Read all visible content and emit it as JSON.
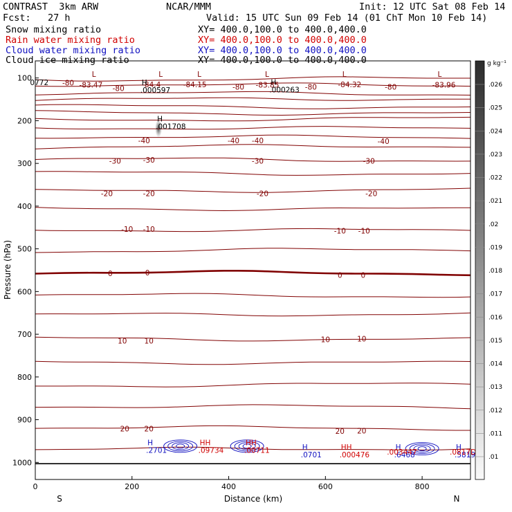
{
  "header": {
    "model": "CONTRAST  3km ARW",
    "center": "NCAR/MMM",
    "init": "Init: 12 UTC Sat 08 Feb 14",
    "fcst": "Fcst:   27 h",
    "valid": "Valid: 15 UTC Sun 09 Feb 14 (01 ChT Mon 10 Feb 14)",
    "fields": [
      {
        "label": "Snow mixing ratio",
        "xy": "XY= 400.0,100.0 to 400.0,400.0",
        "color": "#000000"
      },
      {
        "label": "Rain water mixing ratio",
        "xy": "XY= 400.0,100.0 to 400.0,400.0",
        "color": "#d00000"
      },
      {
        "label": "Cloud water mixing ratio",
        "xy": "XY= 400.0,100.0 to 400.0,400.0",
        "color": "#1010c0"
      },
      {
        "label": "Cloud ice mixing ratio",
        "xy": "XY= 400.0,100.0 to 400.0,400.0",
        "color": "#000000"
      }
    ]
  },
  "chart_data": {
    "type": "contour",
    "xlabel": "Distance (km)",
    "ylabel": "Pressure (hPa)",
    "xlim": [
      0,
      900
    ],
    "ylim": [
      1040,
      60
    ],
    "x_ticks": [
      0,
      200,
      400,
      600,
      800
    ],
    "y_ticks": [
      100,
      200,
      300,
      400,
      500,
      600,
      700,
      800,
      900,
      1000
    ],
    "x_end_labels": {
      "left": "S",
      "right": "N"
    },
    "colorbar": {
      "unit": "g kg⁻¹",
      "ticks": [
        ".01",
        ".011",
        ".012",
        ".013",
        ".014",
        ".015",
        ".016",
        ".017",
        ".018",
        ".019",
        ".02",
        ".021",
        ".022",
        ".023",
        ".024",
        ".025",
        ".026"
      ]
    },
    "temperature_contours": [
      {
        "p": 104,
        "label": null
      },
      {
        "p": 115,
        "label": "-80"
      },
      {
        "p": 135,
        "label": null
      },
      {
        "p": 151,
        "label": null
      },
      {
        "p": 166,
        "label": null
      },
      {
        "p": 181,
        "label": null
      },
      {
        "p": 198,
        "label": null
      },
      {
        "p": 216,
        "label": null
      },
      {
        "p": 237,
        "label": "-40"
      },
      {
        "p": 262,
        "label": null
      },
      {
        "p": 290,
        "label": "-30"
      },
      {
        "p": 322,
        "label": null
      },
      {
        "p": 365,
        "label": "-20"
      },
      {
        "p": 405,
        "label": null
      },
      {
        "p": 455,
        "label": "-10"
      },
      {
        "p": 505,
        "label": null
      },
      {
        "p": 555,
        "label": "0",
        "bold": true
      },
      {
        "p": 608,
        "label": null
      },
      {
        "p": 655,
        "label": null
      },
      {
        "p": 710,
        "label": "10"
      },
      {
        "p": 765,
        "label": null
      },
      {
        "p": 820,
        "label": null
      },
      {
        "p": 868,
        "label": null
      },
      {
        "p": 918,
        "label": "20"
      },
      {
        "p": 970,
        "label": null
      }
    ],
    "contour_labels": [
      {
        "text": "-80",
        "x": 68,
        "p": 111
      },
      {
        "text": "-83.47",
        "x": 115,
        "p": 116
      },
      {
        "text": "-80",
        "x": 172,
        "p": 124
      },
      {
        "text": "-84.4",
        "x": 240,
        "p": 115
      },
      {
        "text": "-84.15",
        "x": 330,
        "p": 115
      },
      {
        "text": "-80",
        "x": 420,
        "p": 121
      },
      {
        "text": "-83.85",
        "x": 480,
        "p": 116
      },
      {
        "text": "-80",
        "x": 570,
        "p": 121
      },
      {
        "text": "-84.32",
        "x": 650,
        "p": 115
      },
      {
        "text": "-80",
        "x": 735,
        "p": 121
      },
      {
        "text": "-83.96",
        "x": 845,
        "p": 116
      },
      {
        "text": "-40",
        "x": 225,
        "p": 246
      },
      {
        "text": "-40",
        "x": 410,
        "p": 246
      },
      {
        "text": "-40",
        "x": 460,
        "p": 246
      },
      {
        "text": "-40",
        "x": 720,
        "p": 248
      },
      {
        "text": "-30",
        "x": 165,
        "p": 294
      },
      {
        "text": "-30",
        "x": 235,
        "p": 292
      },
      {
        "text": "-30",
        "x": 460,
        "p": 294
      },
      {
        "text": "-30",
        "x": 690,
        "p": 294
      },
      {
        "text": "-20",
        "x": 148,
        "p": 370
      },
      {
        "text": "-20",
        "x": 235,
        "p": 370
      },
      {
        "text": "-20",
        "x": 470,
        "p": 370
      },
      {
        "text": "-20",
        "x": 695,
        "p": 370
      },
      {
        "text": "-10",
        "x": 190,
        "p": 454
      },
      {
        "text": "-10",
        "x": 235,
        "p": 454
      },
      {
        "text": "-10",
        "x": 630,
        "p": 458
      },
      {
        "text": "-10",
        "x": 680,
        "p": 458
      },
      {
        "text": "0",
        "x": 155,
        "p": 557
      },
      {
        "text": "0",
        "x": 232,
        "p": 556
      },
      {
        "text": "0",
        "x": 630,
        "p": 561
      },
      {
        "text": "0",
        "x": 678,
        "p": 561
      },
      {
        "text": "10",
        "x": 180,
        "p": 715
      },
      {
        "text": "10",
        "x": 235,
        "p": 715
      },
      {
        "text": "10",
        "x": 600,
        "p": 712
      },
      {
        "text": "10",
        "x": 675,
        "p": 710
      },
      {
        "text": "20",
        "x": 185,
        "p": 921
      },
      {
        "text": "20",
        "x": 235,
        "p": 921
      },
      {
        "text": "20",
        "x": 630,
        "p": 927
      },
      {
        "text": "20",
        "x": 675,
        "p": 926
      }
    ],
    "extrema": [
      {
        "sym": "L",
        "x": 117,
        "p": 97,
        "value": null,
        "color": "#800000"
      },
      {
        "sym": "L",
        "x": 255,
        "p": 97,
        "value": null,
        "color": "#800000"
      },
      {
        "sym": "L",
        "x": 335,
        "p": 97,
        "value": null,
        "color": "#800000"
      },
      {
        "sym": "L",
        "x": 475,
        "p": 97,
        "value": null,
        "color": "#800000"
      },
      {
        "sym": "L",
        "x": 635,
        "p": 97,
        "value": null,
        "color": "#800000"
      },
      {
        "sym": "L",
        "x": 832,
        "p": 97,
        "value": null,
        "color": "#800000"
      },
      {
        "sym": "H",
        "x": 220,
        "p": 117,
        "value": ".000597",
        "color": "#000000"
      },
      {
        "sym": "H",
        "x": 487,
        "p": 116,
        "value": ".000263",
        "color": "#000000"
      },
      {
        "sym": "",
        "x": -8,
        "p": 117,
        "value": "0772",
        "color": "#000000"
      },
      {
        "sym": "H",
        "x": 252,
        "p": 202,
        "value": ".001708",
        "color": "#000000"
      },
      {
        "sym": "H",
        "x": 232,
        "p": 960,
        "value": ".2701",
        "color": "#1010c0"
      },
      {
        "sym": "HH",
        "x": 340,
        "p": 960,
        "value": ".09734",
        "color": "#d00000"
      },
      {
        "sym": "HH",
        "x": 435,
        "p": 960,
        "value": ".00711",
        "color": "#d00000"
      },
      {
        "sym": "H",
        "x": 552,
        "p": 970,
        "value": ".0701",
        "color": "#1010c0"
      },
      {
        "sym": "HH",
        "x": 632,
        "p": 970,
        "value": ".000476",
        "color": "#d00000"
      },
      {
        "sym": "H",
        "x": 745,
        "p": 970,
        "value": ".6468",
        "color": "#1010c0"
      },
      {
        "sym": "",
        "x": 730,
        "p": 982,
        "value": ".003447",
        "color": "#d00000"
      },
      {
        "sym": "H",
        "x": 870,
        "p": 970,
        "value": ".5819",
        "color": "#1010c0"
      },
      {
        "sym": "",
        "x": 860,
        "p": 982,
        "value": ".0817D",
        "color": "#d00000"
      }
    ]
  }
}
